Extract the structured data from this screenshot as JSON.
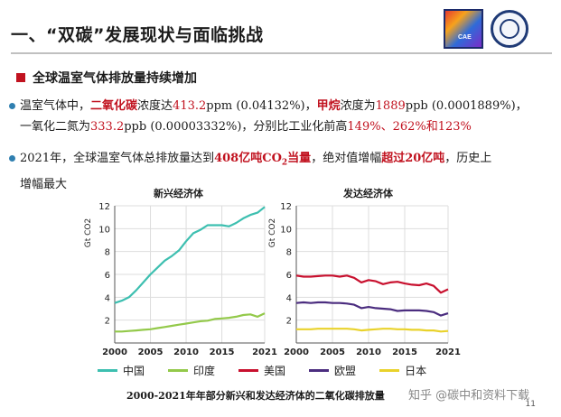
{
  "title": "一、“双碳”发展现状与面临挑战",
  "logo_text": "CAE",
  "subheading": "全球温室气体排放量持续增加",
  "bullet1": {
    "line1": {
      "p1": "温室气体中，",
      "co2": "二氧化碳",
      "p2": "浓度达",
      "co2_val": "413.2",
      "p3": "ppm (0.04132%)，",
      "ch4": "甲烷",
      "p4": "浓度为",
      "ch4_val": "1889",
      "p5": "ppb (0.0001889%)，"
    },
    "line2": {
      "p1": "一氧化二氮为",
      "n2o_val": "333.2",
      "p2": "ppb (0.00003332%)，分别比工业化前高",
      "pcts": "149%、262%和123%"
    }
  },
  "bullet2": {
    "line1": {
      "p1": "2021年，全球温室气体总排放量达到",
      "val": "408亿吨CO",
      "sub": "2",
      "unit": "当量",
      "p2": "，绝对值增幅",
      "inc": "超过20亿吨",
      "p3": "，历史上"
    },
    "line2": "增幅最大"
  },
  "colors": {
    "china": "#3dbfb0",
    "india": "#93c94a",
    "usa": "#c8102e",
    "eu": "#4b2d7f",
    "japan": "#e9d22b",
    "accent": "#c1121f",
    "bullet": "#2f7fb0"
  },
  "chart_data": [
    {
      "type": "line",
      "title": "新兴经济体",
      "ylabel": "Gt CO2",
      "xlabel": "",
      "ylim": [
        0,
        12
      ],
      "xlim": [
        2000,
        2021
      ],
      "xticks": [
        "2000",
        "2005",
        "2010",
        "2015",
        "2021"
      ],
      "yticks": [
        "2",
        "4",
        "6",
        "8",
        "10",
        "12"
      ],
      "series": [
        {
          "name": "中国",
          "x": [
            2000,
            2001,
            2002,
            2003,
            2004,
            2005,
            2006,
            2007,
            2008,
            2009,
            2010,
            2011,
            2012,
            2013,
            2014,
            2015,
            2016,
            2017,
            2018,
            2019,
            2020,
            2021
          ],
          "y": [
            3.5,
            3.7,
            4.0,
            4.6,
            5.3,
            6.0,
            6.6,
            7.2,
            7.6,
            8.1,
            8.9,
            9.6,
            9.9,
            10.3,
            10.3,
            10.3,
            10.2,
            10.5,
            10.9,
            11.2,
            11.4,
            11.9
          ]
        },
        {
          "name": "印度",
          "x": [
            2000,
            2001,
            2002,
            2003,
            2004,
            2005,
            2006,
            2007,
            2008,
            2009,
            2010,
            2011,
            2012,
            2013,
            2014,
            2015,
            2016,
            2017,
            2018,
            2019,
            2020,
            2021
          ],
          "y": [
            1.0,
            1.0,
            1.05,
            1.1,
            1.15,
            1.2,
            1.3,
            1.4,
            1.5,
            1.6,
            1.7,
            1.8,
            1.9,
            1.95,
            2.1,
            2.15,
            2.2,
            2.3,
            2.45,
            2.5,
            2.3,
            2.6
          ]
        }
      ]
    },
    {
      "type": "line",
      "title": "发达经济体",
      "ylabel": "Gt CO2",
      "xlabel": "",
      "ylim": [
        0,
        12
      ],
      "xlim": [
        2000,
        2021
      ],
      "xticks": [
        "2000",
        "2005",
        "2010",
        "2015",
        "2021"
      ],
      "yticks": [
        "2",
        "4",
        "6",
        "8",
        "10",
        "12"
      ],
      "series": [
        {
          "name": "美国",
          "x": [
            2000,
            2001,
            2002,
            2003,
            2004,
            2005,
            2006,
            2007,
            2008,
            2009,
            2010,
            2011,
            2012,
            2013,
            2014,
            2015,
            2016,
            2017,
            2018,
            2019,
            2020,
            2021
          ],
          "y": [
            5.9,
            5.8,
            5.8,
            5.85,
            5.9,
            5.9,
            5.8,
            5.9,
            5.7,
            5.3,
            5.5,
            5.4,
            5.15,
            5.3,
            5.35,
            5.2,
            5.1,
            5.05,
            5.2,
            5.0,
            4.4,
            4.7
          ]
        },
        {
          "name": "欧盟",
          "x": [
            2000,
            2001,
            2002,
            2003,
            2004,
            2005,
            2006,
            2007,
            2008,
            2009,
            2010,
            2011,
            2012,
            2013,
            2014,
            2015,
            2016,
            2017,
            2018,
            2019,
            2020,
            2021
          ],
          "y": [
            3.5,
            3.55,
            3.5,
            3.55,
            3.55,
            3.5,
            3.5,
            3.45,
            3.35,
            3.05,
            3.15,
            3.05,
            3.0,
            2.95,
            2.8,
            2.85,
            2.85,
            2.85,
            2.8,
            2.7,
            2.4,
            2.6
          ]
        },
        {
          "name": "日本",
          "x": [
            2000,
            2001,
            2002,
            2003,
            2004,
            2005,
            2006,
            2007,
            2008,
            2009,
            2010,
            2011,
            2012,
            2013,
            2014,
            2015,
            2016,
            2017,
            2018,
            2019,
            2020,
            2021
          ],
          "y": [
            1.2,
            1.2,
            1.2,
            1.25,
            1.25,
            1.25,
            1.25,
            1.25,
            1.2,
            1.1,
            1.15,
            1.2,
            1.25,
            1.25,
            1.2,
            1.2,
            1.15,
            1.15,
            1.1,
            1.1,
            1.0,
            1.05
          ]
        }
      ]
    }
  ],
  "legend": [
    {
      "label": "中国",
      "key": "china"
    },
    {
      "label": "印度",
      "key": "india"
    },
    {
      "label": "美国",
      "key": "usa"
    },
    {
      "label": "欧盟",
      "key": "eu"
    },
    {
      "label": "日本",
      "key": "japan"
    }
  ],
  "caption": "2000-2021年年部分新兴和发达经济体的二氧化碳排放量",
  "watermark": "知乎 @碳中和资料下载",
  "page_number": "11"
}
